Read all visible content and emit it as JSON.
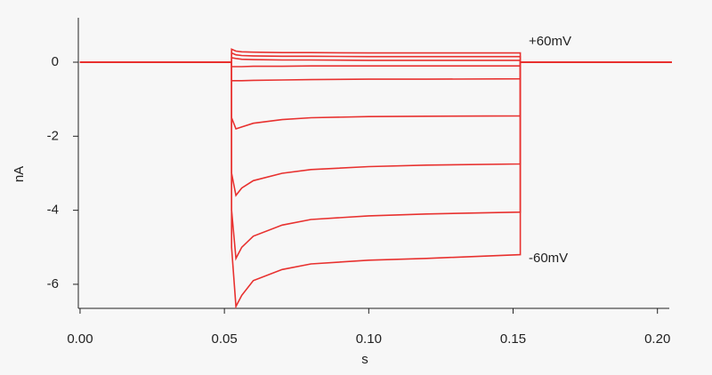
{
  "chart_data": {
    "type": "line",
    "xlabel": "s",
    "ylabel": "nA",
    "annotations": [
      {
        "text": "+60mV"
      },
      {
        "text": "-60mV"
      }
    ],
    "color": "#e8312f",
    "x": [
      0,
      0.0525,
      0.0525,
      0.054,
      0.056,
      0.06,
      0.07,
      0.08,
      0.1,
      0.12,
      0.1525,
      0.1525,
      0.205
    ],
    "series": [
      {
        "values": [
          0,
          0,
          0.35,
          0.3,
          0.28,
          0.27,
          0.26,
          0.26,
          0.25,
          0.25,
          0.25,
          0,
          0
        ]
      },
      {
        "values": [
          0,
          0,
          0.25,
          0.2,
          0.18,
          0.17,
          0.16,
          0.16,
          0.15,
          0.15,
          0.15,
          0,
          0
        ]
      },
      {
        "values": [
          0,
          0,
          0.12,
          0.1,
          0.08,
          0.07,
          0.06,
          0.06,
          0.05,
          0.05,
          0.05,
          0,
          0
        ]
      },
      {
        "values": [
          0,
          0,
          -0.12,
          -0.12,
          -0.12,
          -0.11,
          -0.11,
          -0.1,
          -0.1,
          -0.1,
          -0.1,
          0,
          0
        ]
      },
      {
        "values": [
          0,
          0,
          -0.5,
          -0.5,
          -0.5,
          -0.49,
          -0.48,
          -0.47,
          -0.46,
          -0.46,
          -0.45,
          0,
          0
        ]
      },
      {
        "values": [
          0,
          0,
          -1.5,
          -1.8,
          -1.75,
          -1.65,
          -1.55,
          -1.5,
          -1.47,
          -1.46,
          -1.45,
          0,
          0
        ]
      },
      {
        "values": [
          0,
          0,
          -3.0,
          -3.6,
          -3.4,
          -3.2,
          -3.0,
          -2.9,
          -2.82,
          -2.78,
          -2.75,
          0,
          0
        ]
      },
      {
        "values": [
          0,
          0,
          -4.0,
          -5.3,
          -5.0,
          -4.7,
          -4.4,
          -4.25,
          -4.15,
          -4.1,
          -4.05,
          0,
          0
        ]
      },
      {
        "values": [
          0,
          0,
          -5.0,
          -6.6,
          -6.3,
          -5.9,
          -5.6,
          -5.45,
          -5.35,
          -5.3,
          -5.2,
          0,
          0
        ]
      }
    ],
    "xlim": [
      -0.0006,
      0.2041
    ],
    "ylim": [
      -6.65,
      1.2
    ],
    "xticks": [
      {
        "value": 0,
        "label": "0.00"
      },
      0.05,
      {
        "value": 0.1,
        "label": "0.10"
      },
      0.15,
      {
        "value": 0.2,
        "label": "0.20"
      }
    ],
    "yticks": [
      0,
      -2,
      -4,
      -6
    ],
    "grid": false
  }
}
